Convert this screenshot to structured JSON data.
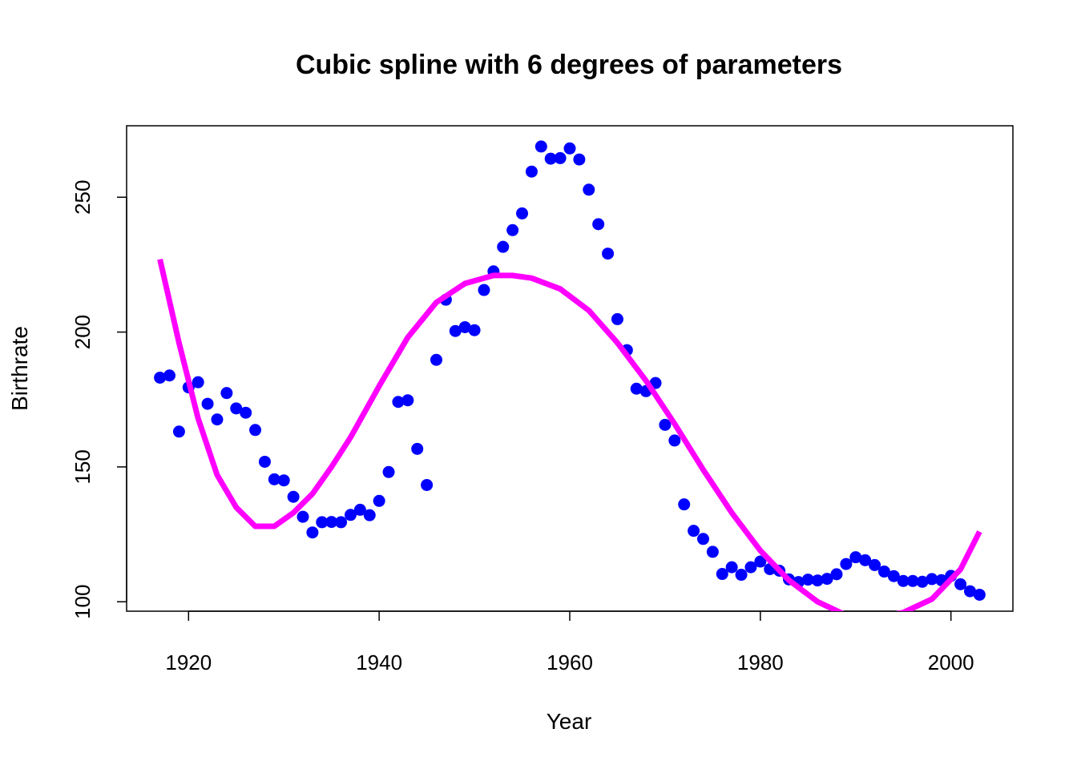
{
  "chart_data": {
    "type": "scatter",
    "title": "Cubic spline with 6 degrees of parameters",
    "xlabel": "Year",
    "ylabel": "Birthrate",
    "xlim": [
      1913.5,
      2006.5
    ],
    "ylim": [
      96.5,
      276.5
    ],
    "x_ticks": [
      1920,
      1940,
      1960,
      1980,
      2000
    ],
    "y_ticks": [
      100,
      150,
      200,
      250
    ],
    "grid": false,
    "legend": "none",
    "colors": {
      "points": "#0000ff",
      "spline": "#ff00ff"
    },
    "series": [
      {
        "mark": "point",
        "x": [
          1917,
          1918,
          1919,
          1920,
          1921,
          1922,
          1923,
          1924,
          1925,
          1926,
          1927,
          1928,
          1929,
          1930,
          1931,
          1932,
          1933,
          1934,
          1935,
          1936,
          1937,
          1938,
          1939,
          1940,
          1941,
          1942,
          1943,
          1944,
          1945,
          1946,
          1947,
          1948,
          1949,
          1950,
          1951,
          1952,
          1953,
          1954,
          1955,
          1956,
          1957,
          1958,
          1959,
          1960,
          1961,
          1962,
          1963,
          1964,
          1965,
          1966,
          1967,
          1968,
          1969,
          1970,
          1971,
          1972,
          1973,
          1974,
          1975,
          1976,
          1977,
          1978,
          1979,
          1980,
          1981,
          1982,
          1983,
          1984,
          1985,
          1986,
          1987,
          1988,
          1989,
          1990,
          1991,
          1992,
          1993,
          1994,
          1995,
          1996,
          1997,
          1998,
          1999,
          2000,
          2001,
          2002,
          2003
        ],
        "y": [
          183.1,
          183.9,
          163.1,
          179.5,
          181.4,
          173.4,
          167.6,
          177.4,
          171.7,
          170.1,
          163.7,
          151.9,
          145.4,
          145.0,
          138.9,
          131.5,
          125.7,
          129.5,
          129.6,
          129.5,
          132.2,
          134.1,
          132.1,
          137.4,
          148.1,
          174.1,
          174.7,
          156.7,
          143.3,
          189.7,
          212.0,
          200.4,
          201.8,
          200.7,
          215.6,
          222.5,
          231.6,
          237.8,
          244.0,
          259.5,
          268.8,
          264.3,
          264.5,
          268.1,
          264.0,
          252.8,
          240.0,
          229.1,
          204.8,
          193.3,
          179.0,
          178.1,
          181.1,
          165.6,
          159.8,
          136.1,
          126.3,
          123.3,
          118.5,
          110.3,
          112.8,
          110.0,
          112.8,
          114.9,
          112.1,
          111.5,
          108.3,
          107.3,
          108.2,
          107.9,
          108.5,
          110.2,
          114.0,
          116.5,
          115.4,
          113.6,
          111.2,
          109.5,
          107.7,
          107.7,
          107.4,
          108.4,
          108.0,
          109.6,
          106.5,
          103.9,
          102.6
        ]
      },
      {
        "mark": "line",
        "x": [
          1917,
          1919,
          1921,
          1923,
          1925,
          1927,
          1929,
          1931,
          1933,
          1935,
          1937,
          1940,
          1943,
          1946,
          1949,
          1952,
          1954,
          1956,
          1959,
          1962,
          1965,
          1968,
          1971,
          1974,
          1977,
          1980,
          1983,
          1986,
          1989,
          1992,
          1995,
          1998,
          2001,
          2003
        ],
        "y": [
          227,
          196,
          168,
          147,
          135,
          128,
          128,
          133,
          140,
          150,
          161,
          180,
          198,
          211,
          218,
          221,
          221,
          220,
          216,
          208,
          196,
          182,
          166,
          149,
          133,
          119,
          108,
          100,
          95,
          94,
          96,
          101,
          112,
          126
        ]
      }
    ]
  }
}
